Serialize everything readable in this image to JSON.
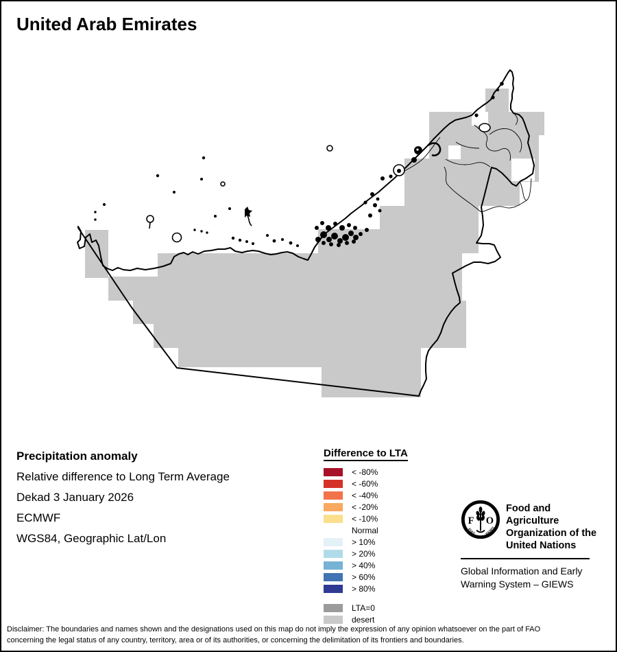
{
  "title": "United Arab Emirates",
  "info": {
    "heading": "Precipitation anomaly",
    "lines": [
      "Relative difference to Long Term Average",
      "Dekad 3 January 2026",
      "ECMWF",
      "WGS84, Geographic Lat/Lon"
    ]
  },
  "legend": {
    "title": "Difference to LTA",
    "items": [
      {
        "label": "< -80%",
        "color": "#A81028"
      },
      {
        "label": "< -60%",
        "color": "#D53227"
      },
      {
        "label": "< -40%",
        "color": "#F2734B"
      },
      {
        "label": "< -20%",
        "color": "#F9A85F"
      },
      {
        "label": "< -10%",
        "color": "#FBDF8D"
      },
      {
        "label": "Normal",
        "color": "#FFFFFF"
      },
      {
        "label": "> 10%",
        "color": "#E4F1F7"
      },
      {
        "label": "> 20%",
        "color": "#B2DBE9"
      },
      {
        "label": "> 40%",
        "color": "#77B1D4"
      },
      {
        "label": "> 60%",
        "color": "#4273B3"
      },
      {
        "label": "> 80%",
        "color": "#2F3A93"
      }
    ],
    "extra": [
      {
        "label": "LTA=0",
        "color": "#9B9B9B"
      },
      {
        "label": "desert",
        "color": "#C9C9C9"
      }
    ]
  },
  "fao": {
    "org_lines": [
      "Food and Agriculture",
      "Organization of the",
      "United Nations"
    ],
    "giews_lines": [
      "Global Information and Early",
      "Warning System – GIEWS"
    ],
    "logo_f": "F",
    "logo_o": "O",
    "motto_fiat": "FIAT",
    "motto_panis": "PANIS"
  },
  "disclaimer_lines": [
    "Disclaimer: The boundaries and names shown and the designations used on this map do not imply the expression of any opinion whatsoever on the part of FAO",
    "concerning the legal status of any country, territory, area or of its authorities, or concerning the delimitation of its frontiers and boundaries."
  ],
  "colors": {
    "desert": "#C9C9C9",
    "lta0": "#9B9B9B",
    "sea": "#FFFFFF",
    "border": "#000000"
  }
}
